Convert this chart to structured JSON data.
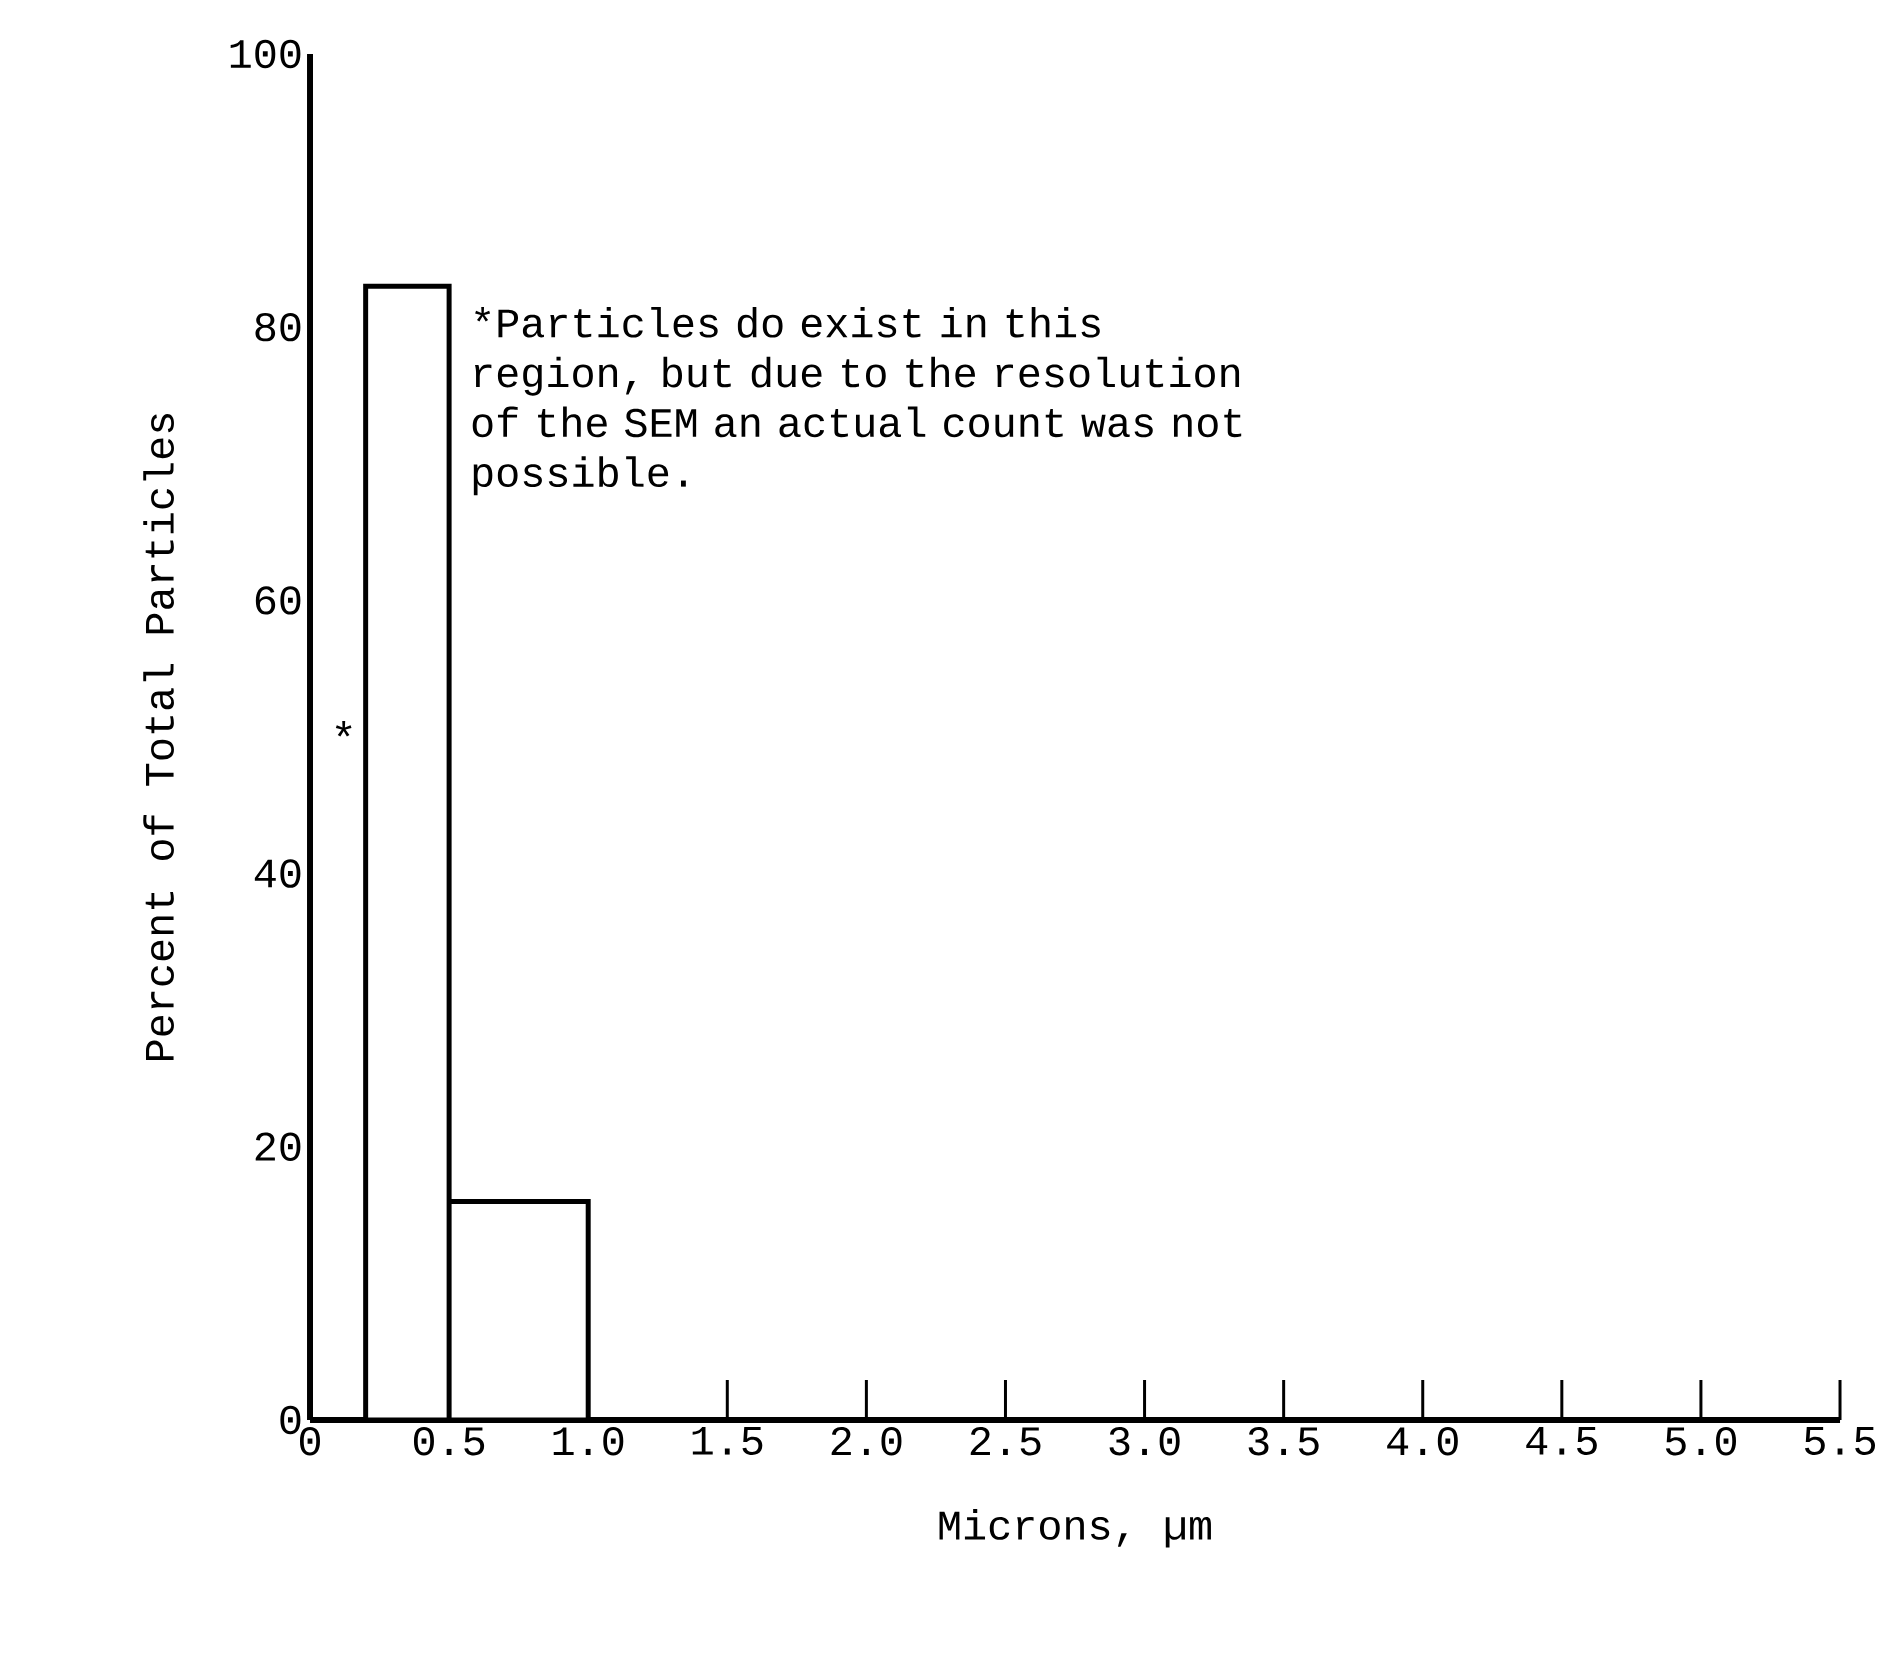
{
  "chart_data": {
    "type": "histogram",
    "xlabel": "Microns, µm",
    "ylabel": "Percent of Total Particles",
    "bins": [
      0.2,
      0.5,
      1.0
    ],
    "values": [
      83,
      16
    ],
    "color": "#ffffff",
    "xlim": [
      0,
      5.5
    ],
    "ylim": [
      0,
      100
    ],
    "xticks": [
      0,
      0.5,
      {
        "value": 1,
        "label": "1.0"
      },
      1.5,
      {
        "value": 2,
        "label": "2.0"
      },
      2.5,
      {
        "value": 3,
        "label": "3.0"
      },
      3.5,
      {
        "value": 4,
        "label": "4.0"
      },
      4.5,
      {
        "value": 5,
        "label": "5.0"
      },
      5.5
    ],
    "yticks": [
      0,
      20,
      40,
      60,
      80,
      100
    ],
    "annotations": [
      "*",
      "*Particles do exist in this region, but due to the resolution of the SEM an actual count was not possible."
    ],
    "grid": false
  }
}
